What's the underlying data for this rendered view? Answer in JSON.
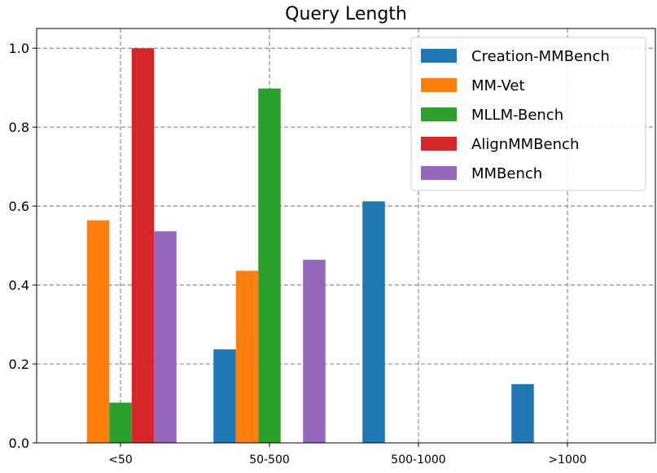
{
  "chart_data": {
    "type": "bar",
    "title": "Query Length",
    "xlabel": "",
    "ylabel": "",
    "categories": [
      "<50",
      "50-500",
      "500-1000",
      ">1000"
    ],
    "ylim": [
      0,
      1.05
    ],
    "yticks": [
      "0.0",
      "0.2",
      "0.4",
      "0.6",
      "0.8",
      "1.0"
    ],
    "grid": true,
    "legend_position": "top-right",
    "series": [
      {
        "name": "Creation-MMBench",
        "color": "#1f77b4",
        "values": [
          0,
          0.237,
          0.612,
          0.149
        ]
      },
      {
        "name": "MM-Vet",
        "color": "#ff7f0e",
        "values": [
          0.564,
          0.436,
          0,
          0
        ]
      },
      {
        "name": "MLLM-Bench",
        "color": "#2ca02c",
        "values": [
          0.102,
          0.898,
          0,
          0
        ]
      },
      {
        "name": "AlignMMBench",
        "color": "#d62728",
        "values": [
          1.0,
          0,
          0,
          0
        ]
      },
      {
        "name": "MMBench",
        "color": "#9467bd",
        "values": [
          0.536,
          0.464,
          0,
          0
        ]
      }
    ]
  }
}
